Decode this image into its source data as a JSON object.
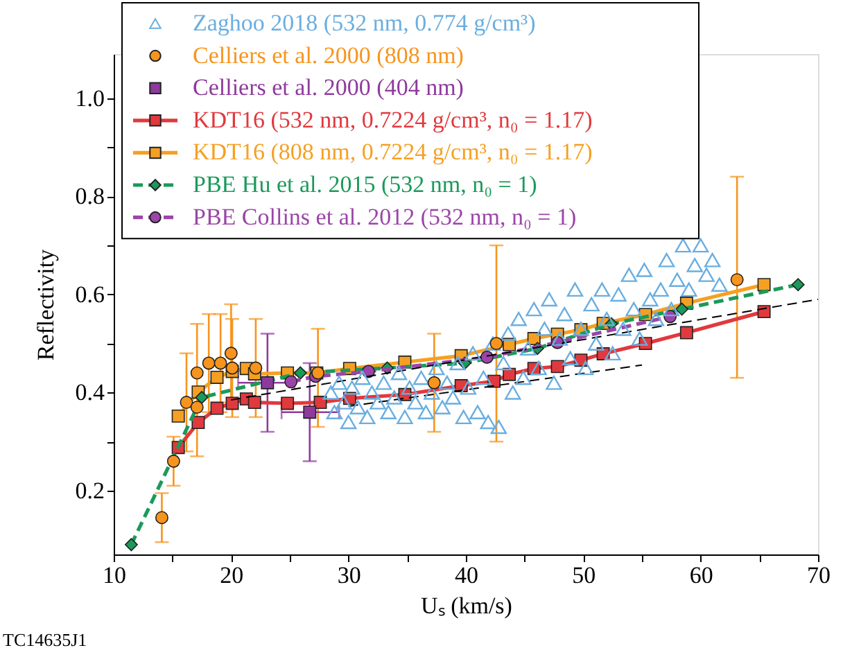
{
  "chart_data": {
    "type": "scatter",
    "xlabel": "Uₛ (km/s)",
    "ylabel": "Reflectivity",
    "xlim": [
      10,
      70
    ],
    "ylim": [
      0.07,
      1.09
    ],
    "xticks": [
      10,
      {
        "value": 15,
        "label": null
      },
      20,
      {
        "value": 25,
        "label": null
      },
      30,
      {
        "value": 35,
        "label": null
      },
      40,
      {
        "value": 45,
        "label": null
      },
      50,
      {
        "value": 55,
        "label": null
      },
      60,
      {
        "value": 65,
        "label": null
      },
      70
    ],
    "yticks": [
      0.2,
      {
        "value": 0.3,
        "label": null
      },
      0.4,
      {
        "value": 0.5,
        "label": null
      },
      0.6,
      {
        "value": 0.7,
        "label": null
      },
      0.8,
      {
        "value": 0.9,
        "label": null
      },
      {
        "value": 1.0,
        "label": "1.0"
      }
    ],
    "grid": false,
    "legend": "top left",
    "annotations": [
      "TC14635J1"
    ],
    "series": [
      {
        "name": "Zaghoo 2018 (532 nm, 0.774 g/cm³)",
        "marker": "triangle",
        "color": "#6aaee0",
        "x": [
          28.5,
          28.8,
          29.2,
          29.6,
          30.0,
          30.3,
          30.8,
          31.2,
          31.6,
          32.0,
          32.5,
          33.0,
          33.4,
          33.9,
          34.3,
          34.8,
          35.2,
          35.7,
          36.2,
          36.6,
          37.1,
          37.5,
          38.0,
          38.4,
          38.9,
          39.3,
          39.8,
          40.2,
          40.6,
          41.0,
          41.5,
          41.9,
          42.3,
          42.8,
          43.2,
          43.6,
          44.0,
          44.5,
          44.9,
          45.3,
          45.8,
          46.2,
          46.7,
          47.1,
          47.5,
          48.0,
          48.4,
          48.9,
          49.3,
          49.8,
          50.2,
          50.7,
          51.1,
          51.6,
          52.0,
          52.5,
          53.0,
          53.4,
          53.9,
          54.3,
          54.8,
          55.2,
          55.7,
          56.2,
          56.6,
          57.1,
          57.5,
          58.0,
          58.5,
          59.0,
          59.5,
          60.0,
          60.5,
          61.0,
          61.6
        ],
        "values": [
          0.4,
          0.36,
          0.42,
          0.38,
          0.34,
          0.41,
          0.37,
          0.43,
          0.35,
          0.4,
          0.38,
          0.42,
          0.36,
          0.39,
          0.44,
          0.35,
          0.41,
          0.38,
          0.43,
          0.36,
          0.4,
          0.45,
          0.37,
          0.42,
          0.39,
          0.46,
          0.35,
          0.41,
          0.48,
          0.36,
          0.43,
          0.34,
          0.5,
          0.33,
          0.46,
          0.52,
          0.4,
          0.55,
          0.43,
          0.49,
          0.57,
          0.45,
          0.53,
          0.59,
          0.42,
          0.51,
          0.56,
          0.47,
          0.61,
          0.53,
          0.45,
          0.58,
          0.5,
          0.61,
          0.55,
          0.48,
          0.6,
          0.53,
          0.64,
          0.57,
          0.51,
          0.65,
          0.59,
          0.55,
          0.61,
          0.67,
          0.57,
          0.63,
          0.7,
          0.61,
          0.66,
          0.7,
          0.64,
          0.67,
          0.62
        ]
      },
      {
        "name": "Celliers et al. 2000 (808 nm)",
        "marker": "circle",
        "color": "#f7941d",
        "x": [
          14.1,
          15.1,
          16.2,
          17.1,
          17.1,
          18.1,
          19.1,
          20.0,
          20.1,
          22.1,
          27.4,
          37.3,
          42.6,
          63.1
        ],
        "values": [
          0.145,
          0.26,
          0.38,
          0.44,
          0.37,
          0.46,
          0.46,
          0.48,
          0.45,
          0.45,
          0.44,
          0.42,
          0.5,
          0.63
        ],
        "errors": [
          [
            0.095,
            0.195
          ],
          [
            0.21,
            0.31
          ],
          [
            0.28,
            0.48
          ],
          [
            0.27,
            0.54
          ],
          null,
          [
            0.36,
            0.56
          ],
          [
            0.36,
            0.56
          ],
          [
            0.38,
            0.58
          ],
          [
            0.35,
            0.55
          ],
          [
            0.35,
            0.55
          ],
          [
            0.33,
            0.53
          ],
          [
            0.32,
            0.52
          ],
          [
            0.3,
            0.7
          ],
          [
            0.43,
            0.84
          ]
        ]
      },
      {
        "name": "Celliers et al. 2000 (404 nm)",
        "marker": "square",
        "color": "#8e3a9d",
        "x": [
          23.1,
          26.7
        ],
        "values": [
          0.42,
          0.36
        ],
        "errors": [
          [
            0.32,
            0.52
          ],
          [
            0.26,
            0.46
          ]
        ],
        "xerrors": [
          [
            20.6,
            25.4
          ],
          [
            24.3,
            29.2
          ]
        ]
      },
      {
        "name": "KDT16 (532 nm, 0.7224 g/cm³, n₀ = 1.17)",
        "type": "line",
        "marker": "square",
        "line_style": "solid",
        "color": "#e0393e",
        "x": [
          15.5,
          17.2,
          18.8,
          20.1,
          21.3,
          22.0,
          24.8,
          27.6,
          30.1,
          34.8,
          39.6,
          42.4,
          43.7,
          45.8,
          47.8,
          49.8,
          51.7,
          55.3,
          58.8,
          65.4
        ],
        "values": [
          0.288,
          0.339,
          0.368,
          0.378,
          0.387,
          0.38,
          0.378,
          0.38,
          0.388,
          0.396,
          0.414,
          0.423,
          0.437,
          0.449,
          0.453,
          0.466,
          0.479,
          0.5,
          0.522,
          0.565
        ]
      },
      {
        "name": "KDT16 (808 nm, 0.7224 g/cm³, n₀ = 1.17)",
        "type": "line",
        "marker": "square",
        "line_style": "solid",
        "color": "#f5a023",
        "x": [
          15.5,
          17.2,
          18.8,
          20.1,
          21.3,
          22.0,
          24.8,
          27.3,
          30.1,
          34.8,
          39.6,
          43.7,
          45.8,
          47.8,
          49.8,
          51.7,
          55.3,
          58.8,
          65.4
        ],
        "values": [
          0.352,
          0.401,
          0.431,
          0.443,
          0.449,
          0.438,
          0.44,
          0.44,
          0.449,
          0.462,
          0.475,
          0.498,
          0.51,
          0.519,
          0.528,
          0.541,
          0.559,
          0.582,
          0.62
        ]
      },
      {
        "name": "PBE Hu et al. 2015 (532 nm, n₀ = 1)",
        "type": "line",
        "marker": "diamond",
        "line_style": "dashed",
        "color": "#1a9a5a",
        "x": [
          11.5,
          17.5,
          25.9,
          33.3,
          39.9,
          46.1,
          52.4,
          58.4,
          68.3
        ],
        "values": [
          0.09,
          0.39,
          0.44,
          0.45,
          0.46,
          0.49,
          0.54,
          0.57,
          0.62
        ]
      },
      {
        "name": "PBE Collins et al. 2012 (532 nm, n₀ = 1)",
        "type": "line",
        "marker": "circle",
        "line_style": "dashed",
        "color": "#9b45a8",
        "x": [
          25.1,
          27.2,
          31.7,
          41.8,
          47.8,
          57.4
        ],
        "values": [
          0.422,
          0.433,
          0.443,
          0.472,
          0.502,
          0.555
        ]
      },
      {
        "type": "line",
        "marker": "none",
        "line_style": "dashed",
        "color": "#000000",
        "x": [
          20,
          70
        ],
        "values": [
          0.385,
          0.59
        ]
      },
      {
        "type": "line",
        "marker": "none",
        "line_style": "dashed",
        "color": "#000000",
        "x": [
          30,
          55
        ],
        "values": [
          0.372,
          0.456
        ]
      }
    ]
  }
}
